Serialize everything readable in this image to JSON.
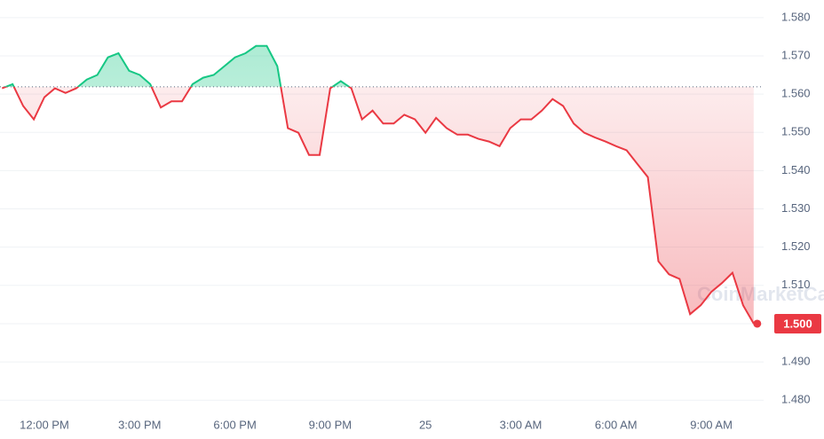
{
  "chart_data": {
    "type": "line",
    "watermark": "CoinMarketCap",
    "categories": [
      null,
      null,
      null,
      null,
      "12:00 PM",
      null,
      null,
      null,
      null,
      null,
      null,
      null,
      null,
      "3:00 PM",
      null,
      null,
      null,
      null,
      null,
      null,
      null,
      null,
      "6:00 PM",
      null,
      null,
      null,
      null,
      null,
      null,
      null,
      null,
      "9:00 PM",
      null,
      null,
      null,
      null,
      null,
      null,
      null,
      null,
      "25",
      null,
      null,
      null,
      null,
      null,
      null,
      null,
      null,
      "3:00 AM",
      null,
      null,
      null,
      null,
      null,
      null,
      null,
      null,
      "6:00 AM",
      null,
      null,
      null,
      null,
      null,
      null,
      null,
      null,
      "9:00 AM",
      null,
      null,
      null,
      null
    ],
    "values": [
      1.5615,
      1.5626,
      1.5569,
      1.5534,
      1.5592,
      1.5615,
      1.5603,
      1.5615,
      1.5638,
      1.565,
      1.5696,
      1.5707,
      1.5661,
      1.565,
      1.5626,
      1.5565,
      1.5581,
      1.5581,
      1.5626,
      1.5643,
      1.565,
      1.5673,
      1.5696,
      1.5707,
      1.5726,
      1.5726,
      1.5673,
      1.5511,
      1.5499,
      1.5441,
      1.5441,
      1.5615,
      1.5634,
      1.5615,
      1.5534,
      1.5557,
      1.5523,
      1.5523,
      1.5546,
      1.5534,
      1.5499,
      1.5538,
      1.5511,
      1.5494,
      1.5494,
      1.5483,
      1.5476,
      1.5464,
      1.5511,
      1.5534,
      1.5534,
      1.5557,
      1.5587,
      1.5569,
      1.5523,
      1.5499,
      1.5487,
      1.5476,
      1.5464,
      1.5453,
      1.5418,
      1.5383,
      1.5163,
      1.5129,
      1.5117,
      1.5025,
      1.5048,
      1.5083,
      1.5106,
      1.5133,
      1.5048,
      1.5
    ],
    "current_price": {
      "value": 1.5,
      "label": "1.500"
    },
    "baseline": 1.5619,
    "up_color": "#16c784",
    "down_color": "#ea3943",
    "ylim": [
      1.4775,
      1.5846
    ],
    "yticks": [
      {
        "value": 1.58,
        "label": "1.580"
      },
      {
        "value": 1.57,
        "label": "1.570"
      },
      {
        "value": 1.56,
        "label": "1.560"
      },
      {
        "value": 1.55,
        "label": "1.550"
      },
      {
        "value": 1.54,
        "label": "1.540"
      },
      {
        "value": 1.53,
        "label": "1.530"
      },
      {
        "value": 1.52,
        "label": "1.520"
      },
      {
        "value": 1.51,
        "label": "1.510"
      },
      {
        "value": 1.5,
        "label": "1.500"
      },
      {
        "value": 1.49,
        "label": "1.490"
      },
      {
        "value": 1.48,
        "label": "1.480"
      }
    ],
    "grid": true
  }
}
